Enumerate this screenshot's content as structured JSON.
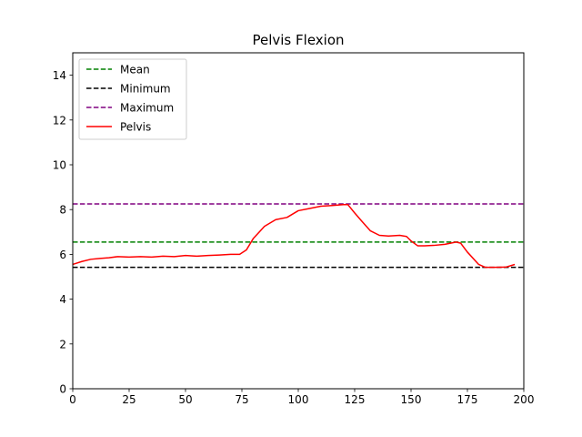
{
  "chart_data": {
    "type": "line",
    "title": "Pelvis Flexion",
    "xlabel": "",
    "ylabel": "",
    "xlim": [
      0,
      200
    ],
    "ylim": [
      0,
      15
    ],
    "x_ticks": [
      0,
      25,
      50,
      75,
      100,
      125,
      150,
      175,
      200
    ],
    "y_ticks": [
      0,
      2,
      4,
      6,
      8,
      10,
      12,
      14
    ],
    "grid": false,
    "legend_position": "top-left",
    "reference_lines": [
      {
        "name": "Mean",
        "value": 6.55,
        "color": "#008000",
        "style": "dashed"
      },
      {
        "name": "Minimum",
        "value": 5.42,
        "color": "#000000",
        "style": "dashed"
      },
      {
        "name": "Maximum",
        "value": 8.25,
        "color": "#800080",
        "style": "dashed"
      }
    ],
    "series": [
      {
        "name": "Pelvis",
        "color": "#ff0000",
        "style": "solid",
        "x": [
          0,
          4,
          8,
          12,
          16,
          20,
          25,
          30,
          35,
          40,
          45,
          50,
          55,
          60,
          65,
          70,
          74,
          77,
          80,
          85,
          90,
          95,
          100,
          105,
          110,
          115,
          120,
          122,
          125,
          128,
          132,
          136,
          140,
          145,
          148,
          150,
          153,
          156,
          160,
          165,
          170,
          172,
          175,
          180,
          183,
          187,
          192,
          196
        ],
        "y": [
          5.55,
          5.68,
          5.78,
          5.82,
          5.85,
          5.9,
          5.88,
          5.9,
          5.88,
          5.92,
          5.9,
          5.95,
          5.92,
          5.95,
          5.97,
          6.0,
          6.0,
          6.2,
          6.7,
          7.25,
          7.55,
          7.65,
          7.95,
          8.05,
          8.15,
          8.18,
          8.22,
          8.22,
          7.85,
          7.5,
          7.05,
          6.85,
          6.82,
          6.85,
          6.8,
          6.6,
          6.38,
          6.38,
          6.4,
          6.45,
          6.55,
          6.5,
          6.1,
          5.55,
          5.42,
          5.42,
          5.43,
          5.55
        ]
      }
    ]
  }
}
